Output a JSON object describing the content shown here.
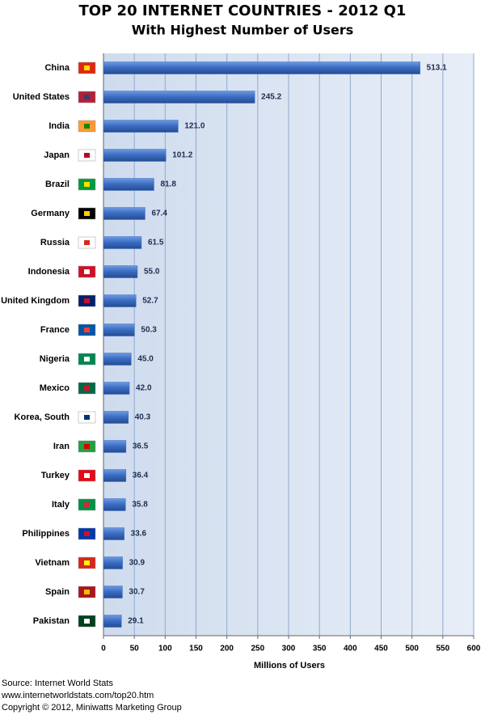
{
  "chart_data": {
    "type": "bar",
    "orientation": "horizontal",
    "title": "TOP 20 INTERNET COUNTRIES  - 2012 Q1",
    "subtitle": "With Highest Number of Users",
    "categories": [
      "China",
      "United States",
      "India",
      "Japan",
      "Brazil",
      "Germany",
      "Russia",
      "Indonesia",
      "United Kingdom",
      "France",
      "Nigeria",
      "Mexico",
      "Korea, South",
      "Iran",
      "Turkey",
      "Italy",
      "Philippines",
      "Vietnam",
      "Spain",
      "Pakistan"
    ],
    "values": [
      513.1,
      245.2,
      121,
      101.2,
      81.8,
      67.4,
      61.5,
      55,
      52.7,
      50.3,
      45,
      42,
      40.3,
      36.5,
      36.4,
      35.8,
      33.6,
      30.9,
      30.7,
      29.1
    ],
    "value_labels": [
      "513.1",
      "245.2",
      "121.0",
      "101.2",
      "81.8",
      "67.4",
      "61.5",
      "55.0",
      "52.7",
      "50.3",
      "45.0",
      "42.0",
      "40.3",
      "36.5",
      "36.4",
      "35.8",
      "33.6",
      "30.9",
      "30.7",
      "29.1"
    ],
    "color": "#3c6ec4",
    "xlabel": "Millions of Users",
    "xlim": [
      0,
      600
    ],
    "xticks": [
      0,
      50,
      100,
      150,
      200,
      250,
      300,
      350,
      400,
      450,
      500,
      550,
      600
    ],
    "grid": true,
    "source": [
      "Source: Internet World Stats",
      "www.internetworldstats.com/top20.htm",
      "Copyright © 2012, Miniwatts Marketing Group"
    ]
  }
}
